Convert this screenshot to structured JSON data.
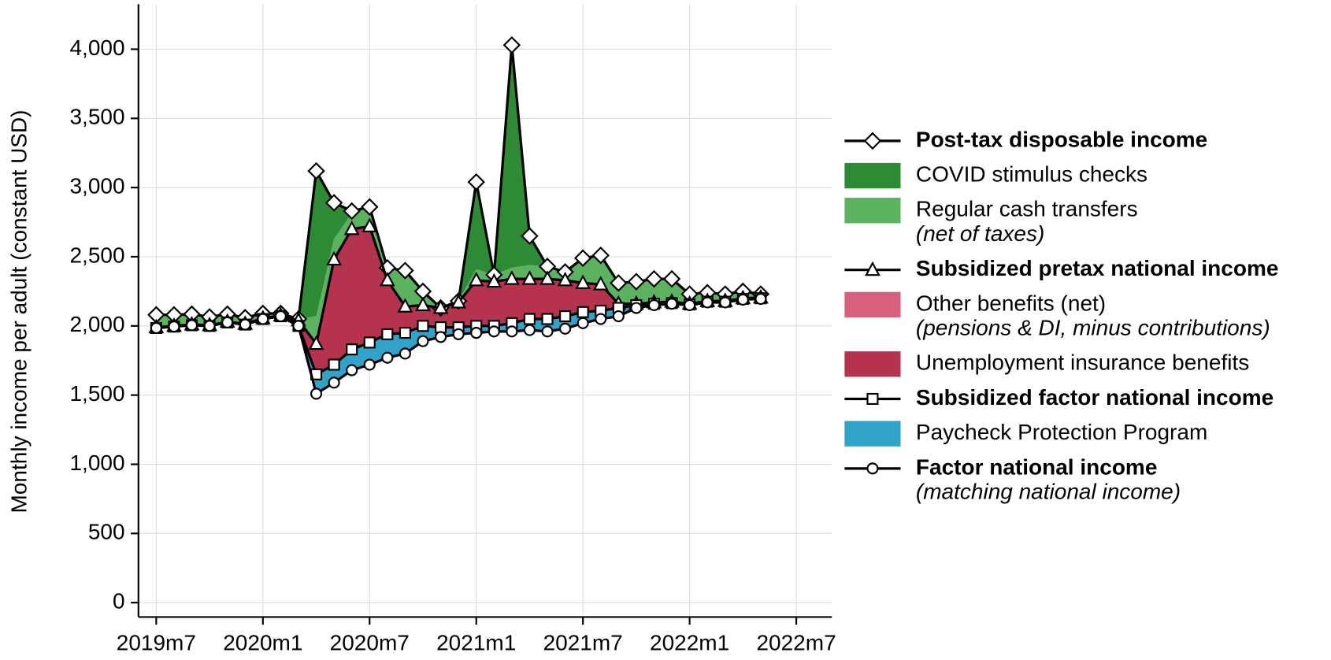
{
  "chart_data": {
    "type": "stacked-area-line",
    "y_label": "Monthly income per adult (constant USD)",
    "x": [
      "2019m7",
      "2019m8",
      "2019m9",
      "2019m10",
      "2019m11",
      "2019m12",
      "2020m1",
      "2020m2",
      "2020m3",
      "2020m4",
      "2020m5",
      "2020m6",
      "2020m7",
      "2020m8",
      "2020m9",
      "2020m10",
      "2020m11",
      "2020m12",
      "2021m1",
      "2021m2",
      "2021m3",
      "2021m4",
      "2021m5",
      "2021m6",
      "2021m7",
      "2021m8",
      "2021m9",
      "2021m10",
      "2021m11",
      "2021m12",
      "2022m1",
      "2022m2",
      "2022m3",
      "2022m4",
      "2022m5"
    ],
    "xlim": [
      "2019m6",
      "2022m9"
    ],
    "xticks": [
      "2019m7",
      "2020m1",
      "2020m7",
      "2021m1",
      "2021m7",
      "2022m1",
      "2022m7"
    ],
    "ylim": [
      -104,
      4325
    ],
    "yticks": [
      0,
      500,
      {
        "value": 1000,
        "label": "1,000"
      },
      {
        "value": 1500,
        "label": "1,500"
      },
      {
        "value": 2000,
        "label": "2,000"
      },
      {
        "value": 2500,
        "label": "2,500"
      },
      {
        "value": 3000,
        "label": "3,000"
      },
      {
        "value": 3500,
        "label": "3,500"
      },
      {
        "value": 4000,
        "label": "4,000"
      }
    ],
    "grid": true,
    "legend": "right",
    "series": [
      {
        "name": "Post-tax disposable income",
        "kind": "line",
        "marker": "diamond",
        "color": "#000000",
        "values": [
          2080,
          2080,
          2085,
          2065,
          2085,
          2060,
          2090,
          2090,
          2050,
          3120,
          2890,
          2830,
          2860,
          2420,
          2400,
          2250,
          2130,
          2180,
          3040,
          2370,
          4030,
          2650,
          2430,
          2390,
          2490,
          2510,
          2310,
          2320,
          2340,
          2340,
          2230,
          2240,
          2230,
          2250,
          2230
        ]
      },
      {
        "name": "COVID stimulus checks",
        "kind": "area",
        "color": "#2e8b35",
        "values": [
          0,
          0,
          0,
          0,
          0,
          0,
          0,
          0,
          0,
          1050,
          260,
          20,
          0,
          0,
          0,
          0,
          0,
          0,
          630,
          0,
          1610,
          210,
          0,
          0,
          0,
          0,
          0,
          0,
          0,
          0,
          0,
          0,
          0,
          0,
          0
        ]
      },
      {
        "name": "Regular cash transfers",
        "detail": "(net of taxes)",
        "kind": "area",
        "color": "#5cb35f",
        "values": [
          90,
          80,
          75,
          60,
          55,
          45,
          35,
          15,
          10,
          200,
          150,
          110,
          140,
          90,
          260,
          100,
          0,
          10,
          80,
          50,
          80,
          100,
          90,
          60,
          180,
          210,
          150,
          160,
          170,
          165,
          70,
          60,
          50,
          50,
          25
        ]
      },
      {
        "name": "Subsidized pretax national income",
        "kind": "line",
        "marker": "triangle",
        "color": "#000000",
        "values": [
          1990,
          2000,
          2010,
          2005,
          2030,
          2015,
          2055,
          2075,
          2040,
          1870,
          2480,
          2700,
          2720,
          2330,
          2140,
          2150,
          2130,
          2170,
          2330,
          2320,
          2340,
          2340,
          2340,
          2330,
          2310,
          2300,
          2160,
          2160,
          2170,
          2175,
          2160,
          2180,
          2180,
          2200,
          2205
        ]
      },
      {
        "name": "Other benefits (net)",
        "detail": "(pensions & DI, minus contributions)",
        "kind": "area",
        "color": "#d9607d",
        "values": [
          5,
          5,
          5,
          5,
          5,
          5,
          5,
          5,
          5,
          5,
          5,
          5,
          5,
          5,
          5,
          5,
          5,
          5,
          5,
          5,
          5,
          5,
          5,
          5,
          5,
          5,
          5,
          5,
          5,
          5,
          5,
          5,
          5,
          5,
          5
        ]
      },
      {
        "name": "Unemployment insurance benefits",
        "kind": "area",
        "color": "#b5334f",
        "values": [
          0,
          0,
          0,
          0,
          0,
          0,
          0,
          0,
          35,
          215,
          755,
          865,
          835,
          385,
          185,
          145,
          135,
          175,
          325,
          315,
          315,
          285,
          285,
          255,
          205,
          185,
          25,
          5,
          5,
          5,
          0,
          0,
          0,
          0,
          0
        ]
      },
      {
        "name": "Subsidized factor national income",
        "kind": "line",
        "marker": "square",
        "color": "#000000",
        "values": [
          1985,
          1995,
          2005,
          2000,
          2025,
          2010,
          2050,
          2070,
          2000,
          1650,
          1720,
          1830,
          1880,
          1940,
          1950,
          2000,
          1990,
          1990,
          2000,
          2000,
          2020,
          2050,
          2050,
          2070,
          2100,
          2110,
          2130,
          2150,
          2160,
          2165,
          2155,
          2175,
          2175,
          2195,
          2200
        ]
      },
      {
        "name": "Paycheck Protection Program",
        "kind": "area",
        "color": "#31a2c8",
        "values": [
          0,
          0,
          0,
          0,
          0,
          0,
          0,
          0,
          0,
          140,
          130,
          150,
          160,
          170,
          150,
          110,
          70,
          50,
          50,
          40,
          60,
          80,
          90,
          90,
          80,
          60,
          60,
          20,
          10,
          5,
          5,
          5,
          5,
          5,
          5
        ]
      },
      {
        "name": "Factor national income",
        "detail": "(matching national income)",
        "kind": "line",
        "marker": "circle",
        "color": "#000000",
        "values": [
          1985,
          1995,
          2005,
          2000,
          2025,
          2010,
          2050,
          2070,
          2000,
          1510,
          1590,
          1680,
          1720,
          1770,
          1800,
          1890,
          1920,
          1940,
          1950,
          1960,
          1960,
          1970,
          1960,
          1980,
          2020,
          2050,
          2070,
          2130,
          2150,
          2160,
          2150,
          2170,
          2170,
          2190,
          2195
        ]
      }
    ]
  }
}
